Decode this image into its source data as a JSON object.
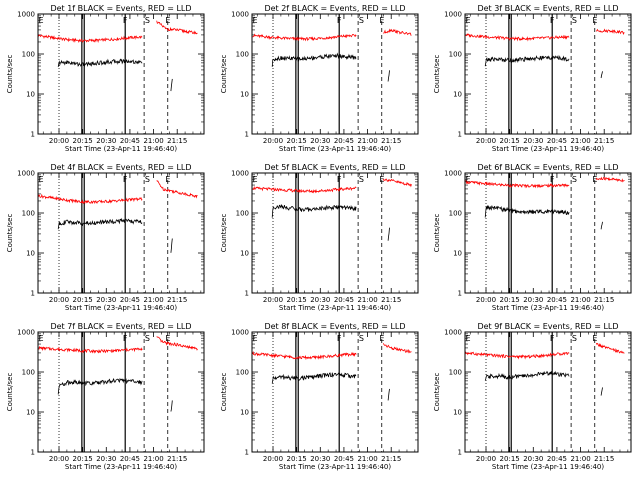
{
  "chart_data": {
    "type": "line",
    "y_scale": "log",
    "ylim": [
      1,
      1000
    ],
    "y_ticks": [
      "1",
      "10",
      "100",
      "1000"
    ],
    "ylabel": "Counts/sec",
    "xlabel": "Start Time (23-Apr-11 19:46:40)",
    "x_ticks": [
      "20:00",
      "20:15",
      "20:30",
      "20:45",
      "21:00",
      "21:15"
    ],
    "x_tick_times_min": [
      0,
      15,
      30,
      45,
      60,
      75
    ],
    "xlim_min": [
      -13.33,
      92
    ],
    "markers": [
      {
        "label": "E",
        "time_min": -13.0
      },
      {
        "label": "F",
        "time_min": 40.5
      },
      {
        "label": "S",
        "time_min": 54.5
      },
      {
        "label": "E",
        "time_min": 67.5
      }
    ],
    "lines_dotted_min": [
      0
    ],
    "lines_solid_min": [
      14.5,
      16.0,
      42.0
    ],
    "lines_dashed_min": [
      54.0,
      69.0
    ],
    "series_colors": {
      "events": "#000000",
      "lld": "#ff0000"
    },
    "panels": [
      {
        "title": "Det 1f BLACK = Events, RED = LLD",
        "lld": [
          [
            -13,
            290
          ],
          [
            -5,
            260
          ],
          [
            5,
            230
          ],
          [
            15,
            215
          ],
          [
            25,
            220
          ],
          [
            35,
            235
          ],
          [
            47,
            260
          ],
          [
            53,
            265
          ]
        ],
        "lld2": [
          [
            62,
            650
          ],
          [
            68,
            420
          ],
          [
            75,
            400
          ],
          [
            80,
            370
          ],
          [
            88,
            330
          ]
        ],
        "events": [
          [
            -0.5,
            45
          ],
          [
            0,
            60
          ],
          [
            5,
            62
          ],
          [
            10,
            58
          ],
          [
            15,
            55
          ],
          [
            20,
            57
          ],
          [
            25,
            60
          ],
          [
            30,
            63
          ],
          [
            35,
            65
          ],
          [
            40,
            67
          ],
          [
            47,
            65
          ],
          [
            53,
            60
          ]
        ],
        "events2": [
          [
            71,
            12
          ],
          [
            72,
            25
          ]
        ]
      },
      {
        "title": "Det 2f BLACK = Events, RED = LLD",
        "lld": [
          [
            -13,
            290
          ],
          [
            -5,
            270
          ],
          [
            5,
            250
          ],
          [
            15,
            240
          ],
          [
            25,
            240
          ],
          [
            35,
            255
          ],
          [
            45,
            280
          ],
          [
            53,
            290
          ]
        ],
        "lld2": [
          [
            70,
            340
          ],
          [
            75,
            400
          ],
          [
            80,
            350
          ],
          [
            88,
            310
          ]
        ],
        "events": [
          [
            -0.5,
            50
          ],
          [
            0,
            75
          ],
          [
            5,
            80
          ],
          [
            10,
            78
          ],
          [
            15,
            75
          ],
          [
            20,
            76
          ],
          [
            25,
            80
          ],
          [
            30,
            85
          ],
          [
            35,
            88
          ],
          [
            40,
            92
          ],
          [
            47,
            85
          ],
          [
            53,
            80
          ]
        ],
        "events2": [
          [
            73,
            20
          ],
          [
            74,
            40
          ]
        ]
      },
      {
        "title": "Det 3f BLACK = Events, RED = LLD",
        "lld": [
          [
            -13,
            300
          ],
          [
            -5,
            280
          ],
          [
            5,
            260
          ],
          [
            15,
            245
          ],
          [
            25,
            240
          ],
          [
            35,
            250
          ],
          [
            45,
            260
          ],
          [
            53,
            270
          ]
        ],
        "lld2": [
          [
            70,
            380
          ],
          [
            75,
            380
          ],
          [
            80,
            380
          ],
          [
            88,
            340
          ]
        ],
        "events": [
          [
            -0.5,
            50
          ],
          [
            0,
            70
          ],
          [
            5,
            75
          ],
          [
            10,
            73
          ],
          [
            15,
            70
          ],
          [
            20,
            72
          ],
          [
            25,
            75
          ],
          [
            30,
            78
          ],
          [
            35,
            80
          ],
          [
            40,
            82
          ],
          [
            47,
            78
          ],
          [
            53,
            75
          ]
        ],
        "events2": [
          [
            73,
            25
          ],
          [
            74,
            40
          ]
        ]
      },
      {
        "title": "Det 4f BLACK = Events, RED = LLD",
        "lld": [
          [
            -13,
            270
          ],
          [
            -5,
            240
          ],
          [
            5,
            210
          ],
          [
            15,
            190
          ],
          [
            25,
            190
          ],
          [
            35,
            200
          ],
          [
            45,
            215
          ],
          [
            53,
            225
          ]
        ],
        "lld2": [
          [
            62,
            650
          ],
          [
            66,
            400
          ],
          [
            75,
            330
          ],
          [
            80,
            300
          ],
          [
            88,
            260
          ]
        ],
        "events": [
          [
            -0.5,
            40
          ],
          [
            0,
            55
          ],
          [
            5,
            60
          ],
          [
            10,
            58
          ],
          [
            15,
            55
          ],
          [
            20,
            56
          ],
          [
            25,
            58
          ],
          [
            30,
            60
          ],
          [
            35,
            62
          ],
          [
            40,
            64
          ],
          [
            47,
            62
          ],
          [
            53,
            60
          ]
        ],
        "events2": [
          [
            71,
            10
          ],
          [
            72,
            25
          ]
        ]
      },
      {
        "title": "Det 5f BLACK = Events, RED = LLD",
        "lld": [
          [
            -13,
            420
          ],
          [
            -5,
            400
          ],
          [
            5,
            380
          ],
          [
            15,
            360
          ],
          [
            25,
            350
          ],
          [
            35,
            370
          ],
          [
            45,
            400
          ],
          [
            53,
            420
          ]
        ],
        "lld2": [
          [
            70,
            700
          ],
          [
            75,
            650
          ],
          [
            80,
            580
          ],
          [
            88,
            500
          ]
        ],
        "events": [
          [
            -0.5,
            80
          ],
          [
            0,
            140
          ],
          [
            5,
            145
          ],
          [
            10,
            135
          ],
          [
            15,
            125
          ],
          [
            20,
            120
          ],
          [
            25,
            125
          ],
          [
            30,
            130
          ],
          [
            35,
            135
          ],
          [
            40,
            140
          ],
          [
            47,
            135
          ],
          [
            53,
            130
          ]
        ],
        "events2": [
          [
            73,
            20
          ],
          [
            74,
            45
          ]
        ]
      },
      {
        "title": "Det 6f BLACK = Events, RED = LLD",
        "lld": [
          [
            -13,
            600
          ],
          [
            -5,
            560
          ],
          [
            5,
            520
          ],
          [
            15,
            490
          ],
          [
            25,
            480
          ],
          [
            35,
            480
          ],
          [
            45,
            490
          ],
          [
            53,
            500
          ]
        ],
        "lld2": [
          [
            70,
            700
          ],
          [
            75,
            720
          ],
          [
            80,
            700
          ],
          [
            88,
            650
          ]
        ],
        "events": [
          [
            -0.5,
            80
          ],
          [
            0,
            140
          ],
          [
            5,
            135
          ],
          [
            10,
            125
          ],
          [
            15,
            115
          ],
          [
            20,
            108
          ],
          [
            25,
            105
          ],
          [
            30,
            108
          ],
          [
            35,
            110
          ],
          [
            40,
            112
          ],
          [
            47,
            108
          ],
          [
            53,
            100
          ]
        ],
        "events2": [
          [
            73,
            40
          ],
          [
            74,
            60
          ]
        ]
      },
      {
        "title": "Det 7f BLACK = Events, RED = LLD",
        "lld": [
          [
            -13,
            400
          ],
          [
            -5,
            380
          ],
          [
            5,
            360
          ],
          [
            15,
            340
          ],
          [
            25,
            330
          ],
          [
            35,
            340
          ],
          [
            45,
            360
          ],
          [
            53,
            380
          ]
        ],
        "lld2": [
          [
            62,
            750
          ],
          [
            66,
            550
          ],
          [
            75,
            480
          ],
          [
            80,
            430
          ],
          [
            88,
            380
          ]
        ],
        "events": [
          [
            -0.5,
            25
          ],
          [
            0,
            45
          ],
          [
            5,
            55
          ],
          [
            10,
            55
          ],
          [
            15,
            52
          ],
          [
            20,
            53
          ],
          [
            25,
            55
          ],
          [
            30,
            58
          ],
          [
            35,
            60
          ],
          [
            40,
            62
          ],
          [
            47,
            58
          ],
          [
            53,
            55
          ]
        ],
        "events2": [
          [
            71,
            10
          ],
          [
            72,
            20
          ]
        ]
      },
      {
        "title": "Det 8f BLACK = Events, RED = LLD",
        "lld": [
          [
            -13,
            290
          ],
          [
            -5,
            270
          ],
          [
            5,
            250
          ],
          [
            15,
            230
          ],
          [
            25,
            230
          ],
          [
            35,
            245
          ],
          [
            45,
            270
          ],
          [
            53,
            280
          ]
        ],
        "lld2": [
          [
            70,
            500
          ],
          [
            75,
            400
          ],
          [
            80,
            360
          ],
          [
            88,
            320
          ]
        ],
        "events": [
          [
            -0.5,
            50
          ],
          [
            0,
            70
          ],
          [
            5,
            75
          ],
          [
            10,
            72
          ],
          [
            15,
            70
          ],
          [
            20,
            72
          ],
          [
            25,
            75
          ],
          [
            30,
            80
          ],
          [
            35,
            85
          ],
          [
            40,
            88
          ],
          [
            47,
            82
          ],
          [
            53,
            78
          ]
        ],
        "events2": [
          [
            73,
            20
          ],
          [
            74,
            40
          ]
        ]
      },
      {
        "title": "Det 9f BLACK = Events, RED = LLD",
        "lld": [
          [
            -13,
            300
          ],
          [
            -5,
            280
          ],
          [
            5,
            260
          ],
          [
            15,
            245
          ],
          [
            25,
            240
          ],
          [
            35,
            255
          ],
          [
            45,
            280
          ],
          [
            53,
            300
          ]
        ],
        "lld2": [
          [
            70,
            500
          ],
          [
            75,
            420
          ],
          [
            80,
            360
          ],
          [
            88,
            300
          ]
        ],
        "events": [
          [
            -0.5,
            55
          ],
          [
            0,
            75
          ],
          [
            5,
            80
          ],
          [
            10,
            78
          ],
          [
            15,
            75
          ],
          [
            20,
            78
          ],
          [
            25,
            80
          ],
          [
            30,
            85
          ],
          [
            35,
            90
          ],
          [
            40,
            95
          ],
          [
            47,
            88
          ],
          [
            53,
            80
          ]
        ],
        "events2": [
          [
            73,
            25
          ],
          [
            74,
            45
          ]
        ]
      }
    ]
  }
}
